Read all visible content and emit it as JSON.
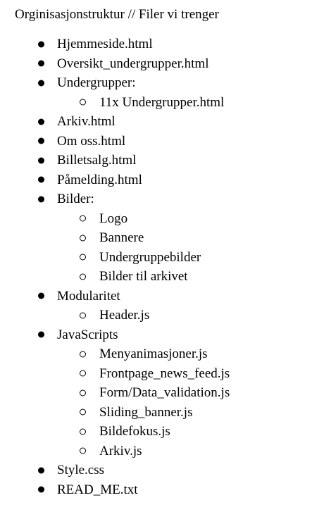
{
  "title": "Orginisasjonstruktur // Filer vi trenger",
  "items": [
    {
      "label": "Hjemmeside.html",
      "level": 1
    },
    {
      "label": "Oversikt_undergrupper.html",
      "level": 1
    },
    {
      "label": "Undergrupper:",
      "level": 1
    },
    {
      "label": "11x Undergrupper.html",
      "level": 2
    },
    {
      "label": "Arkiv.html",
      "level": 1
    },
    {
      "label": "Om oss.html",
      "level": 1
    },
    {
      "label": "Billetsalg.html",
      "level": 1
    },
    {
      "label": "Påmelding.html",
      "level": 1
    },
    {
      "label": "Bilder:",
      "level": 1
    },
    {
      "label": "Logo",
      "level": 2
    },
    {
      "label": "Bannere",
      "level": 2
    },
    {
      "label": "Undergruppebilder",
      "level": 2
    },
    {
      "label": "Bilder til arkivet",
      "level": 2
    },
    {
      "label": "Modularitet",
      "level": 1
    },
    {
      "label": "Header.js",
      "level": 2
    },
    {
      "label": "JavaScripts",
      "level": 1
    },
    {
      "label": "Menyanimasjoner.js",
      "level": 2
    },
    {
      "label": "Frontpage_news_feed.js",
      "level": 2
    },
    {
      "label": "Form/Data_validation.js",
      "level": 2
    },
    {
      "label": "Sliding_banner.js",
      "level": 2
    },
    {
      "label": "Bildefokus.js",
      "level": 2
    },
    {
      "label": "Arkiv.js",
      "level": 2
    },
    {
      "label": "Style.css",
      "level": 1
    },
    {
      "label": "READ_ME.txt",
      "level": 1
    }
  ]
}
